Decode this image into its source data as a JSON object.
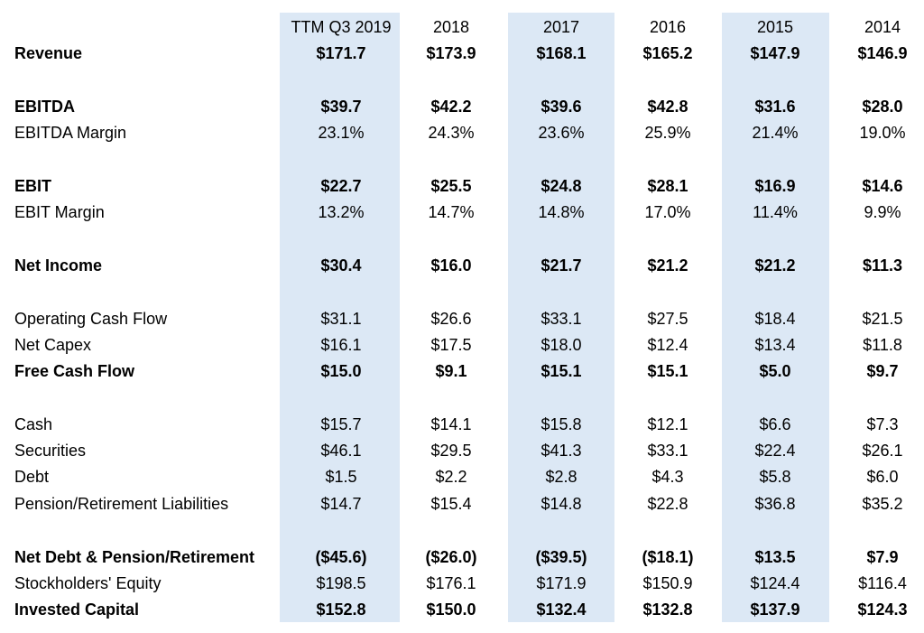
{
  "columns": [
    "TTM Q3 2019",
    "2018",
    "2017",
    "2016",
    "2015",
    "2014"
  ],
  "shaded_color": "#dce8f5",
  "rows": [
    {
      "label": "Revenue",
      "bold": true,
      "values": [
        "$171.7",
        "$173.9",
        "$168.1",
        "$165.2",
        "$147.9",
        "$146.9"
      ]
    },
    {
      "label": "EBITDA",
      "bold": true,
      "values": [
        "$39.7",
        "$42.2",
        "$39.6",
        "$42.8",
        "$31.6",
        "$28.0"
      ]
    },
    {
      "label": "EBITDA Margin",
      "bold": false,
      "values": [
        "23.1%",
        "24.3%",
        "23.6%",
        "25.9%",
        "21.4%",
        "19.0%"
      ]
    },
    {
      "label": "EBIT",
      "bold": true,
      "values": [
        "$22.7",
        "$25.5",
        "$24.8",
        "$28.1",
        "$16.9",
        "$14.6"
      ]
    },
    {
      "label": "EBIT Margin",
      "bold": false,
      "values": [
        "13.2%",
        "14.7%",
        "14.8%",
        "17.0%",
        "11.4%",
        "9.9%"
      ]
    },
    {
      "label": "Net Income",
      "bold": true,
      "values": [
        "$30.4",
        "$16.0",
        "$21.7",
        "$21.2",
        "$21.2",
        "$11.3"
      ]
    },
    {
      "label": "Operating Cash Flow",
      "bold": false,
      "values": [
        "$31.1",
        "$26.6",
        "$33.1",
        "$27.5",
        "$18.4",
        "$21.5"
      ]
    },
    {
      "label": "Net Capex",
      "bold": false,
      "values": [
        "$16.1",
        "$17.5",
        "$18.0",
        "$12.4",
        "$13.4",
        "$11.8"
      ]
    },
    {
      "label": "Free Cash Flow",
      "bold": true,
      "values": [
        "$15.0",
        "$9.1",
        "$15.1",
        "$15.1",
        "$5.0",
        "$9.7"
      ]
    },
    {
      "label": "Cash",
      "bold": false,
      "values": [
        "$15.7",
        "$14.1",
        "$15.8",
        "$12.1",
        "$6.6",
        "$7.3"
      ]
    },
    {
      "label": "Securities",
      "bold": false,
      "values": [
        "$46.1",
        "$29.5",
        "$41.3",
        "$33.1",
        "$22.4",
        "$26.1"
      ]
    },
    {
      "label": "Debt",
      "bold": false,
      "values": [
        "$1.5",
        "$2.2",
        "$2.8",
        "$4.3",
        "$5.8",
        "$6.0"
      ]
    },
    {
      "label": "Pension/Retirement Liabilities",
      "bold": false,
      "values": [
        "$14.7",
        "$15.4",
        "$14.8",
        "$22.8",
        "$36.8",
        "$35.2"
      ]
    },
    {
      "label": "Net Debt & Pension/Retirement",
      "bold": true,
      "values": [
        "($45.6)",
        "($26.0)",
        "($39.5)",
        "($18.1)",
        "$13.5",
        "$7.9"
      ]
    },
    {
      "label": "Stockholders' Equity",
      "bold": false,
      "values": [
        "$198.5",
        "$176.1",
        "$171.9",
        "$150.9",
        "$124.4",
        "$116.4"
      ]
    },
    {
      "label": "Invested Capital",
      "bold": true,
      "values": [
        "$152.8",
        "$150.0",
        "$132.4",
        "$132.8",
        "$137.9",
        "$124.3"
      ]
    }
  ]
}
